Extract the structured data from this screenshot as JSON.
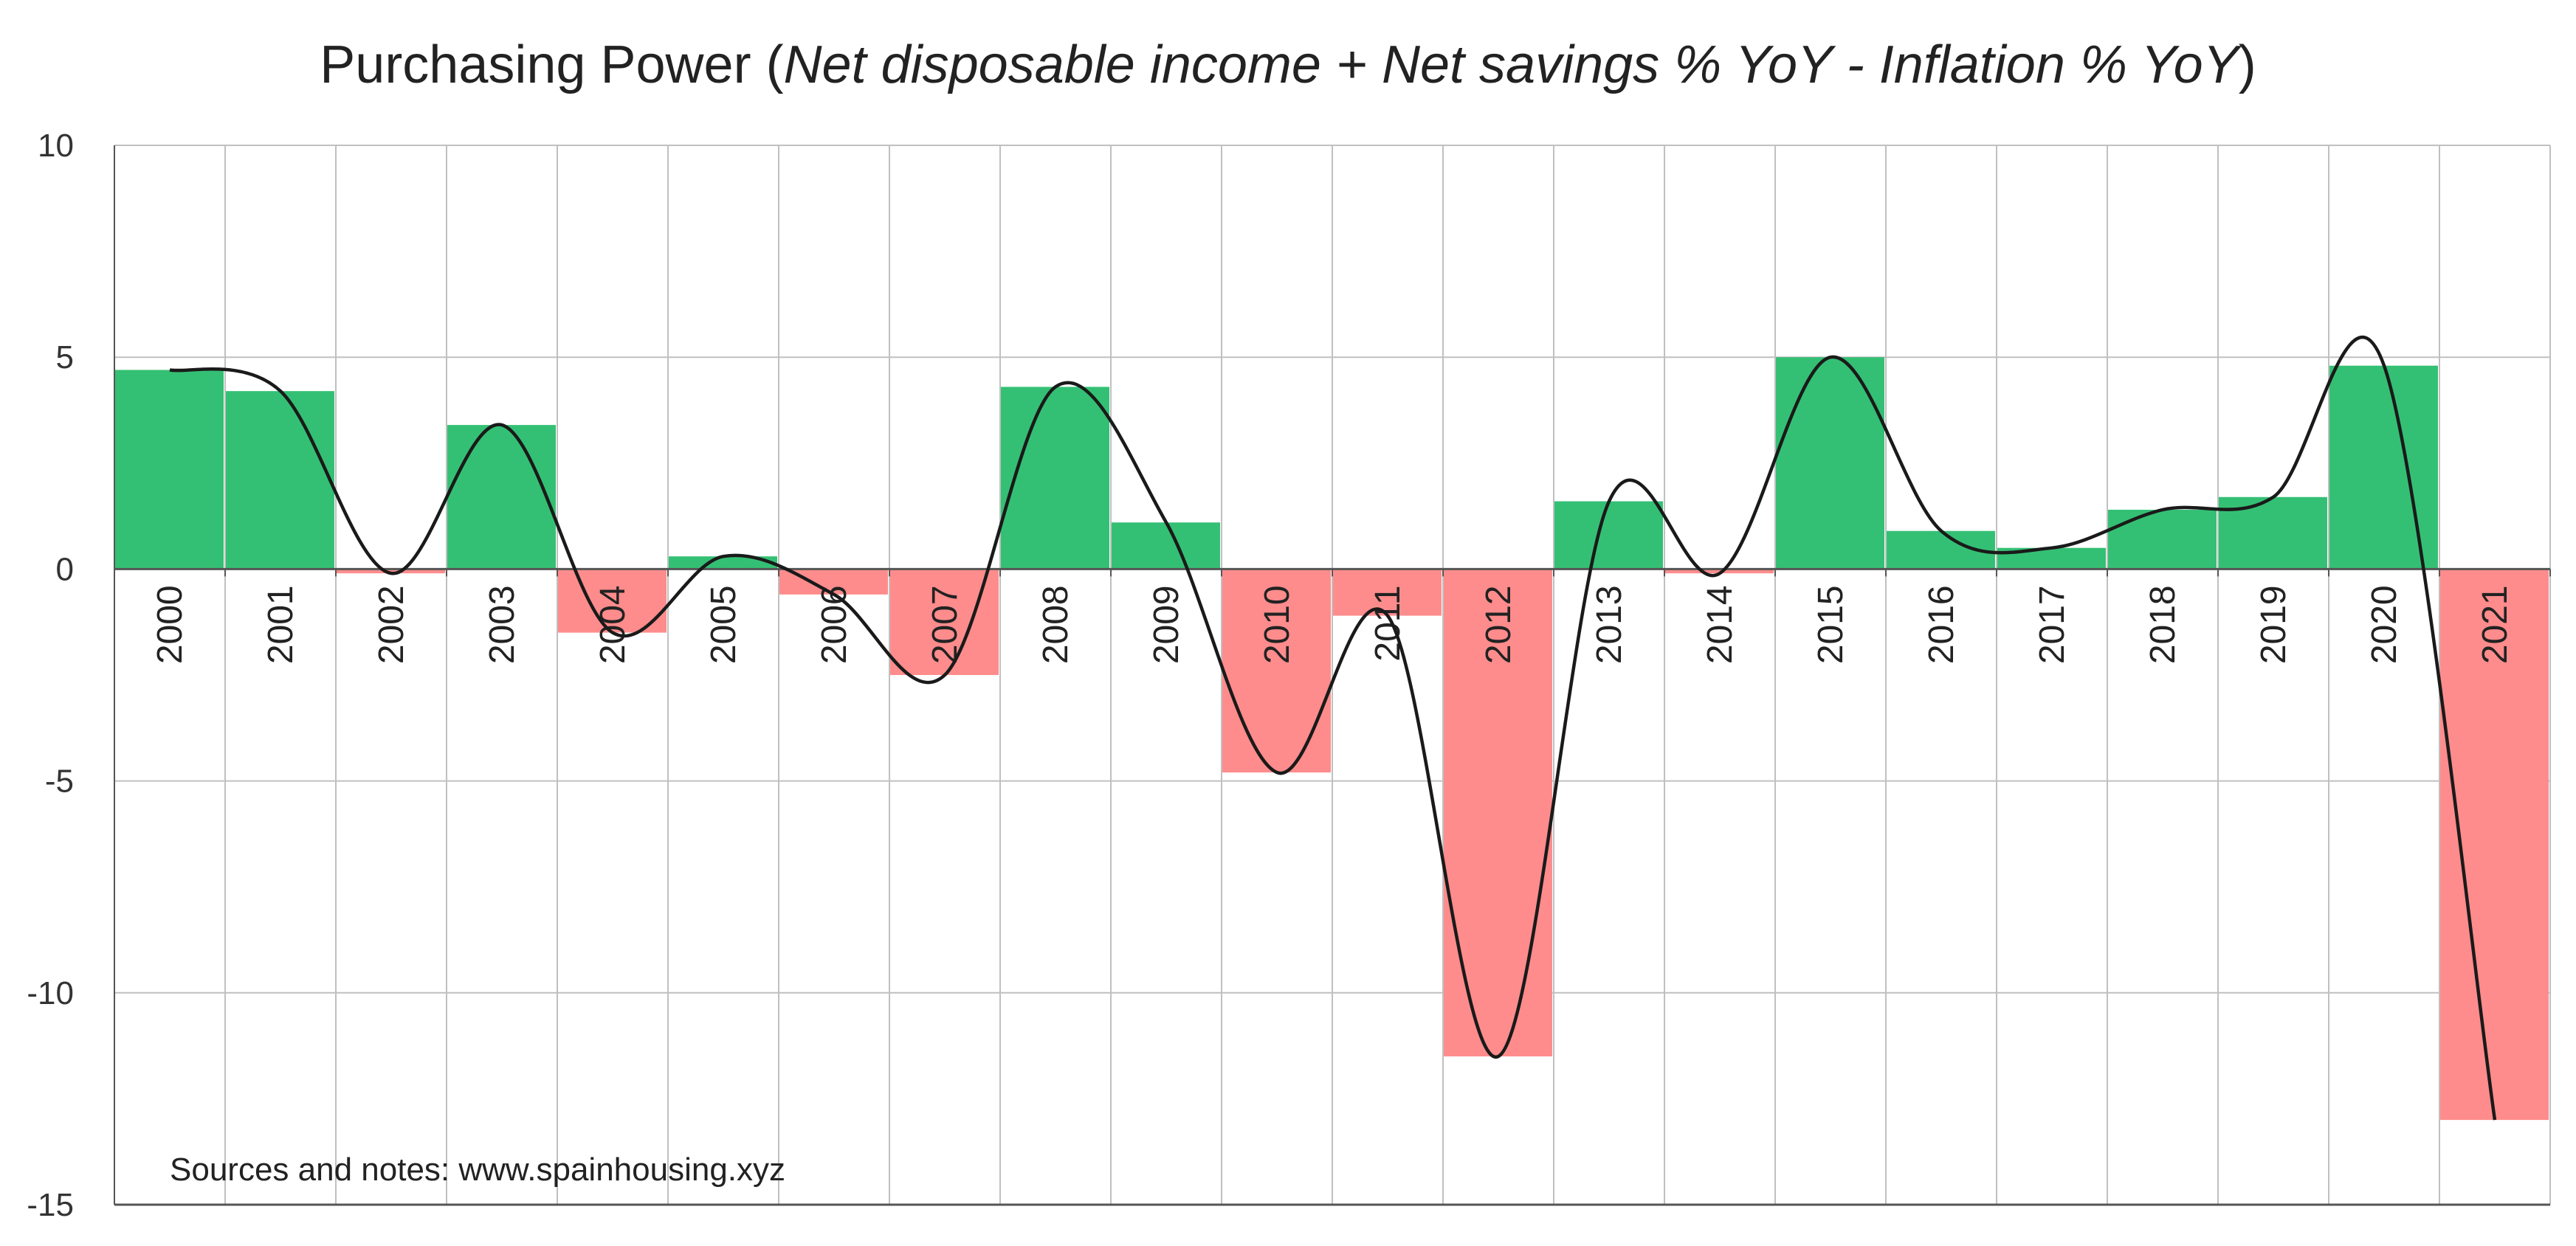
{
  "title": {
    "main": "Purchasing Power (",
    "italic": "Net disposable income + Net savings % YoY - Inflation % YoY",
    "close": ")"
  },
  "note": "Sources and notes: www.spainhousing.xyz",
  "chart_data": {
    "type": "bar",
    "title": "Purchasing Power (Net disposable income + Net savings % YoY - Inflation % YoY)",
    "categories": [
      "2000",
      "2001",
      "2002",
      "2003",
      "2004",
      "2005",
      "2006",
      "2007",
      "2008",
      "2009",
      "2010",
      "2011",
      "2012",
      "2013",
      "2014",
      "2015",
      "2016",
      "2017",
      "2018",
      "2019",
      "2020",
      "2021"
    ],
    "values": [
      4.7,
      4.2,
      -0.1,
      3.4,
      -1.5,
      0.3,
      -0.6,
      -2.5,
      4.3,
      1.1,
      -4.8,
      -1.1,
      -11.5,
      1.6,
      -0.1,
      5.0,
      0.9,
      0.5,
      1.4,
      1.7,
      4.8,
      -13.0
    ],
    "smoothed_line": "smoothed curve through bar values",
    "ylim": [
      -15,
      10
    ],
    "yticks": [
      -15,
      -10,
      -5,
      0,
      5,
      10
    ],
    "grid": true,
    "colors": {
      "positive": "#34c074",
      "negative": "#ff8c8c",
      "line": "#1a1a1a",
      "grid": "#c0c0c0",
      "axis": "#555555"
    }
  }
}
